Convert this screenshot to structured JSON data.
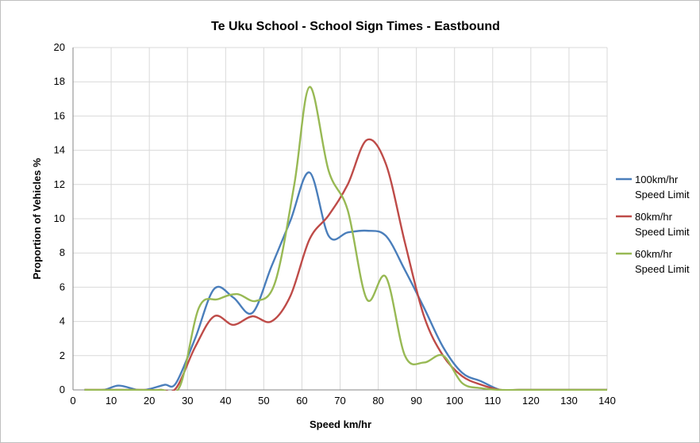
{
  "chart_data": {
    "type": "line",
    "title": "Te Uku School - School Sign Times - Eastbound",
    "xlabel": "Speed km/hr",
    "ylabel": "Proportion of Vehicles %",
    "xlim": [
      0,
      140
    ],
    "ylim": [
      0,
      20
    ],
    "xticks": [
      0,
      10,
      20,
      30,
      40,
      50,
      60,
      70,
      80,
      90,
      100,
      110,
      120,
      130,
      140
    ],
    "yticks": [
      0,
      2,
      4,
      6,
      8,
      10,
      12,
      14,
      16,
      18,
      20
    ],
    "grid": true,
    "legend_position": "right",
    "series": [
      {
        "name": "100km/hr Speed Limit",
        "color": "#4a7ebb",
        "x": [
          3,
          8,
          12,
          17,
          20,
          24,
          27,
          32,
          37,
          42,
          47,
          52,
          57,
          62,
          67,
          72,
          77,
          82,
          87,
          92,
          97,
          102,
          107,
          112,
          117,
          122,
          127,
          132,
          137,
          142
        ],
        "y": [
          0,
          0,
          0.25,
          0,
          0.05,
          0.3,
          0.4,
          3.0,
          5.9,
          5.4,
          4.5,
          7.2,
          9.9,
          12.7,
          9.0,
          9.2,
          9.3,
          9.0,
          7.0,
          4.8,
          2.5,
          1.0,
          0.5,
          0,
          0,
          0,
          0,
          0,
          0,
          0
        ]
      },
      {
        "name": "80km/hr Speed Limit",
        "color": "#be4b48",
        "x": [
          3,
          8,
          13,
          18,
          23,
          27,
          32,
          37,
          42,
          47,
          52,
          57,
          62,
          67,
          72,
          77,
          82,
          87,
          92,
          97,
          102,
          107,
          112,
          117,
          122,
          127,
          132,
          137,
          142
        ],
        "y": [
          0,
          0,
          0,
          0,
          0,
          0.1,
          2.5,
          4.3,
          3.8,
          4.3,
          4.0,
          5.5,
          8.8,
          10.2,
          12.0,
          14.6,
          13.2,
          8.6,
          4.3,
          2.0,
          0.8,
          0.3,
          0,
          0,
          0,
          0,
          0,
          0,
          0
        ]
      },
      {
        "name": "60km/hr Speed Limit",
        "color": "#98b954",
        "x": [
          3,
          8,
          13,
          18,
          23,
          28,
          33,
          38,
          43,
          48,
          53,
          58,
          62,
          67,
          72,
          77,
          82,
          87,
          92,
          97,
          102,
          107,
          112,
          117,
          122,
          127,
          132,
          137,
          142
        ],
        "y": [
          0,
          0,
          0,
          0,
          0,
          0.2,
          4.8,
          5.3,
          5.6,
          5.2,
          6.3,
          12.0,
          17.7,
          12.8,
          10.5,
          5.3,
          6.6,
          2.0,
          1.6,
          2.0,
          0.4,
          0.1,
          0,
          0,
          0,
          0,
          0,
          0,
          0
        ]
      }
    ],
    "legend_lines": [
      [
        "100km/hr",
        "Speed Limit"
      ],
      [
        "80km/hr",
        "Speed Limit"
      ],
      [
        "60km/hr",
        "Speed Limit"
      ]
    ]
  }
}
